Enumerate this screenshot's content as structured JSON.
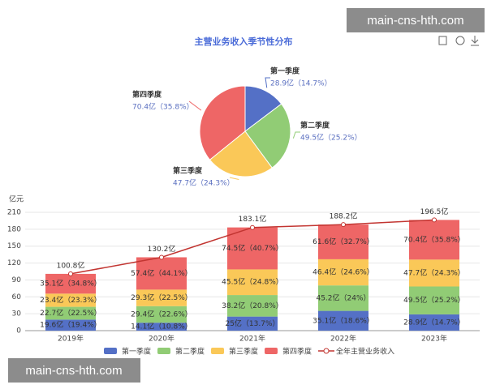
{
  "watermarks": [
    "main-cns-hth.com",
    "main-cns-hth.com"
  ],
  "chart_data": [
    {
      "type": "pie",
      "title": "主营业务收入季节性分布",
      "categories": [
        "第一季度",
        "第二季度",
        "第三季度",
        "第四季度"
      ],
      "values": [
        28.9,
        49.5,
        47.7,
        70.4
      ],
      "value_labels": [
        "28.9亿（14.7%）",
        "49.5亿（25.2%）",
        "47.7亿（24.3%）",
        "70.4亿（35.8%）"
      ],
      "colors": [
        "#5470c6",
        "#91cc75",
        "#fac858",
        "#ee6666"
      ]
    },
    {
      "type": "bar",
      "stacked": true,
      "y_label": "亿元",
      "categories": [
        "2019年",
        "2020年",
        "2021年",
        "2022年",
        "2023年"
      ],
      "ylim": [
        0,
        210
      ],
      "yticks": [
        0,
        30,
        60,
        90,
        120,
        150,
        180,
        210
      ],
      "grid": true,
      "legend": "bottom",
      "series": [
        {
          "name": "第一季度",
          "color": "#5470c6",
          "values": [
            19.6,
            14.1,
            25,
            35.1,
            28.9
          ],
          "value_labels": [
            "19.6亿（19.4%）",
            "14.1亿（10.8%）",
            "25亿（13.7%）",
            "35.1亿（18.6%）",
            "28.9亿（14.7%）"
          ]
        },
        {
          "name": "第二季度",
          "color": "#91cc75",
          "values": [
            22.7,
            29.4,
            38.2,
            45.2,
            49.5
          ],
          "value_labels": [
            "22.7亿（22.5%）",
            "29.4亿（22.6%）",
            "38.2亿（20.8%）",
            "45.2亿（24%）",
            "49.5亿（25.2%）"
          ]
        },
        {
          "name": "第三季度",
          "color": "#fac858",
          "values": [
            23.4,
            29.3,
            45.5,
            46.4,
            47.7
          ],
          "value_labels": [
            "23.4亿（23.3%）",
            "29.3亿（22.5%）",
            "45.5亿（24.8%）",
            "46.4亿（24.6%）",
            "47.7亿（24.3%）"
          ]
        },
        {
          "name": "第四季度",
          "color": "#ee6666",
          "values": [
            35.1,
            57.4,
            74.5,
            61.6,
            70.4
          ],
          "value_labels": [
            "35.1亿（34.8%）",
            "57.4亿（44.1%）",
            "74.5亿（40.7%）",
            "61.6亿（32.7%）",
            "70.4亿（35.8%）"
          ]
        },
        {
          "name": "全年主营业务收入",
          "type": "line",
          "color": "#c23531",
          "values": [
            100.8,
            130.2,
            183.1,
            188.2,
            196.5
          ],
          "value_labels": [
            "100.8亿",
            "130.2亿",
            "183.1亿",
            "188.2亿",
            "196.5亿"
          ]
        }
      ]
    }
  ]
}
